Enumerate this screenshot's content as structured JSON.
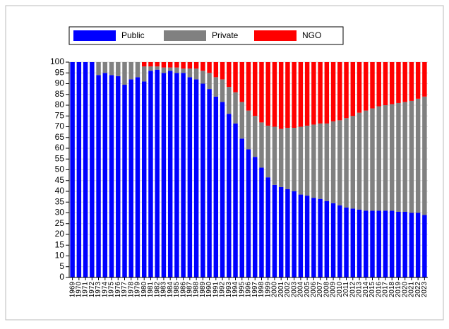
{
  "chart_data": {
    "type": "stacked_bar",
    "categories": [
      "1969",
      "1970",
      "1971",
      "1972",
      "1973",
      "1974",
      "1975",
      "1976",
      "1977",
      "1978",
      "1979",
      "1980",
      "1981",
      "1982",
      "1983",
      "1984",
      "1985",
      "1986",
      "1987",
      "1988",
      "1989",
      "1990",
      "1991",
      "1992",
      "1993",
      "1994",
      "1995",
      "1996",
      "1997",
      "1998",
      "1999",
      "2000",
      "2001",
      "2002",
      "2003",
      "2004",
      "2005",
      "2006",
      "2007",
      "2008",
      "2009",
      "2010",
      "2011",
      "2012",
      "2013",
      "2014",
      "2015",
      "2016",
      "2017",
      "2018",
      "2019",
      "2020",
      "2021",
      "2022",
      "2023"
    ],
    "series": [
      {
        "name": "Public",
        "color": "#0000ff",
        "values": [
          100,
          100,
          100,
          100,
          94,
          95,
          94,
          93.5,
          89.5,
          92,
          93,
          91,
          96,
          96.5,
          95,
          96,
          95,
          95,
          93,
          92,
          90,
          87.5,
          84,
          81.5,
          76,
          71.5,
          64.5,
          59.5,
          56,
          51,
          46.5,
          43,
          42,
          41,
          40,
          38.5,
          38,
          37,
          36.5,
          35.5,
          34.5,
          33.5,
          32.5,
          32,
          31.5,
          31,
          31,
          31,
          31,
          31,
          30.5,
          30.5,
          30,
          30,
          29
        ]
      },
      {
        "name": "Private",
        "color": "#808080",
        "values": [
          0,
          0,
          0,
          0,
          6,
          5,
          6,
          6.5,
          10.5,
          8,
          7,
          7,
          2,
          1.5,
          2.5,
          1.5,
          2.5,
          2,
          4,
          5,
          6,
          7.5,
          9,
          10.5,
          12.5,
          14.5,
          17,
          18,
          19,
          21,
          24,
          27,
          27,
          28.5,
          29.5,
          31.5,
          32.5,
          34,
          35,
          36,
          38,
          39.5,
          41.5,
          43,
          45,
          46.5,
          47.5,
          48.5,
          49,
          49.5,
          50.5,
          51,
          52,
          53,
          55
        ]
      },
      {
        "name": "NGO",
        "color": "#ff0000",
        "values": [
          0,
          0,
          0,
          0,
          0,
          0,
          0,
          0,
          0,
          0,
          0,
          2,
          2,
          2,
          2.5,
          2.5,
          2.5,
          3,
          3,
          3,
          4,
          5,
          7,
          8,
          11.5,
          14,
          18.5,
          22.5,
          25,
          28,
          29.5,
          30,
          31,
          30.5,
          30.5,
          30,
          29.5,
          29,
          28.5,
          28.5,
          27.5,
          27,
          26,
          25,
          23.5,
          22.5,
          21.5,
          20.5,
          20,
          19.5,
          19,
          18.5,
          18,
          17,
          16
        ]
      }
    ],
    "ylim": [
      0,
      100
    ],
    "yticks": [
      0,
      5,
      10,
      15,
      20,
      25,
      30,
      35,
      40,
      45,
      50,
      55,
      60,
      65,
      70,
      75,
      80,
      85,
      90,
      95,
      100
    ],
    "grid": true,
    "legend": "top"
  }
}
